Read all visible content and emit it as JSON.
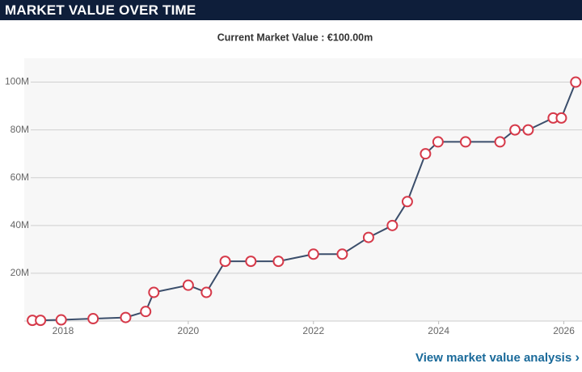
{
  "header": {
    "title": "MARKET VALUE OVER TIME"
  },
  "chart_data": {
    "type": "line",
    "title": "Current Market Value : €100.00m",
    "x": [
      2017.51,
      2017.64,
      2017.97,
      2018.48,
      2019.0,
      2019.32,
      2019.45,
      2020.0,
      2020.29,
      2020.59,
      2021.0,
      2021.44,
      2022.0,
      2022.46,
      2022.88,
      2023.26,
      2023.5,
      2023.79,
      2023.99,
      2024.43,
      2024.98,
      2025.22,
      2025.43,
      2025.83,
      2025.96,
      2026.19
    ],
    "series": [
      {
        "name": "Market value",
        "color": "#3b4e6b",
        "marker_color": "#d63a4a",
        "values": [
          0.3,
          0.3,
          0.5,
          1,
          1.5,
          4,
          12,
          15,
          12,
          25,
          25,
          25,
          28,
          28,
          35,
          40,
          50,
          70,
          75,
          75,
          75,
          80,
          80,
          85,
          85,
          100
        ]
      }
    ],
    "xlim": [
      2017.38,
      2026.29
    ],
    "xticks": [
      2018,
      2020,
      2022,
      2024,
      2026
    ],
    "ylim": [
      0,
      110
    ],
    "yticks": [
      {
        "value": 20,
        "label": "20M"
      },
      {
        "value": 40,
        "label": "40M"
      },
      {
        "value": 60,
        "label": "60M"
      },
      {
        "value": 80,
        "label": "80M"
      },
      {
        "value": 100,
        "label": "100M"
      }
    ],
    "grid": true
  },
  "footer": {
    "link": "View market value analysis"
  }
}
